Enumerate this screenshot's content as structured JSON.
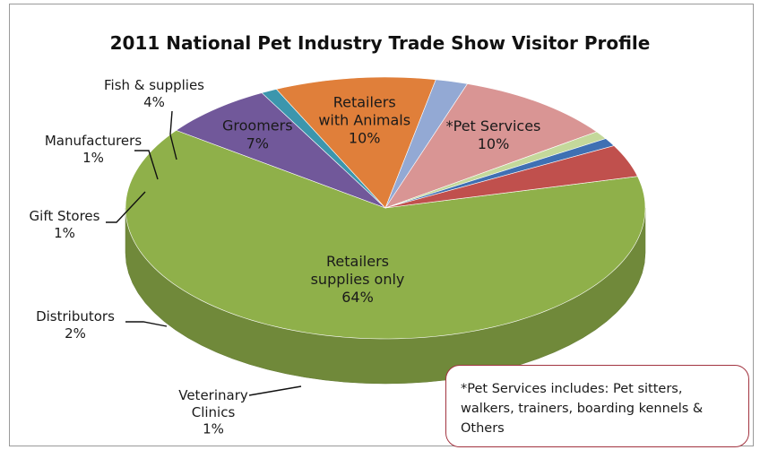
{
  "chart_data": {
    "type": "pie",
    "title": "2011 National Pet Industry Trade Show Visitor Profile",
    "categories": [
      "Retailers supplies only",
      "Groomers",
      "Veterinary Clinics",
      "Retailers with Animals",
      "Distributors",
      "*Pet Services",
      "Gift Stores",
      "Manufacturers",
      "Fish & supplies"
    ],
    "values": [
      64,
      7,
      1,
      10,
      2,
      10,
      1,
      1,
      4
    ],
    "value_labels": [
      "64%",
      "7%",
      "1%",
      "10%",
      "2%",
      "10%",
      "1%",
      "1%",
      "4%"
    ],
    "colors": [
      "#8fb04a",
      "#71589a",
      "#3c96ad",
      "#e07f3a",
      "#93a9d4",
      "#d99594",
      "#c4d89b",
      "#3f70b3",
      "#c0504d"
    ],
    "style": "3d",
    "legend": "none"
  },
  "footnote": "*Pet Services includes: Pet sitters, walkers, trainers, boarding kennels & Others"
}
